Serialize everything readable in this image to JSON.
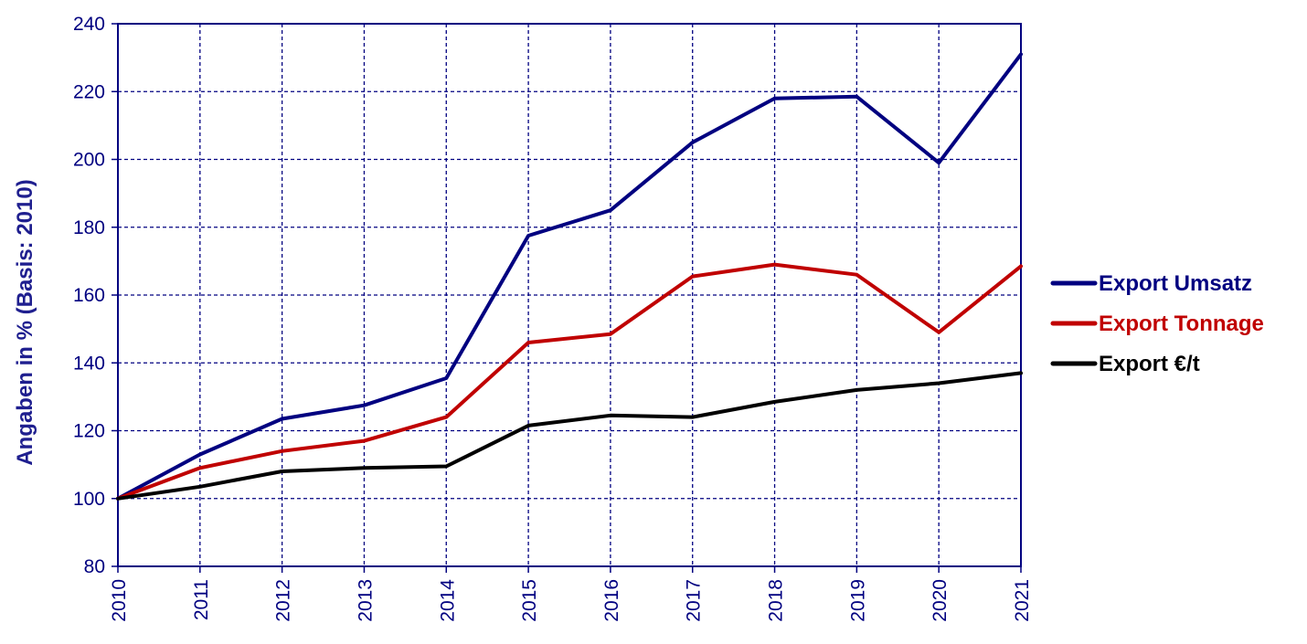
{
  "chart_data": {
    "type": "line",
    "title": "",
    "xlabel": "",
    "ylabel": "Angaben in % (Basis: 2010)",
    "categories": [
      "2010",
      "2011",
      "2012",
      "2013",
      "2014",
      "2015",
      "2016",
      "2017",
      "2018",
      "2019",
      "2020",
      "2021"
    ],
    "ylim": [
      80,
      240
    ],
    "yticks": [
      80,
      100,
      120,
      140,
      160,
      180,
      200,
      220,
      240
    ],
    "grid": true,
    "legend_position": "right",
    "series": [
      {
        "name": "Export Umsatz",
        "color": "#000080",
        "values": [
          100,
          113,
          123.5,
          127.5,
          135.5,
          177.5,
          185,
          205,
          218,
          218.5,
          199,
          231
        ]
      },
      {
        "name": "Export Tonnage",
        "color": "#c00000",
        "values": [
          100,
          109,
          114,
          117,
          124,
          146,
          148.5,
          165.5,
          169,
          166,
          149,
          168.5
        ]
      },
      {
        "name": "Export €/t",
        "color": "#000000",
        "values": [
          100,
          103.5,
          108,
          109,
          109.5,
          121.5,
          124.5,
          124,
          128.5,
          132,
          134,
          137
        ]
      }
    ]
  }
}
